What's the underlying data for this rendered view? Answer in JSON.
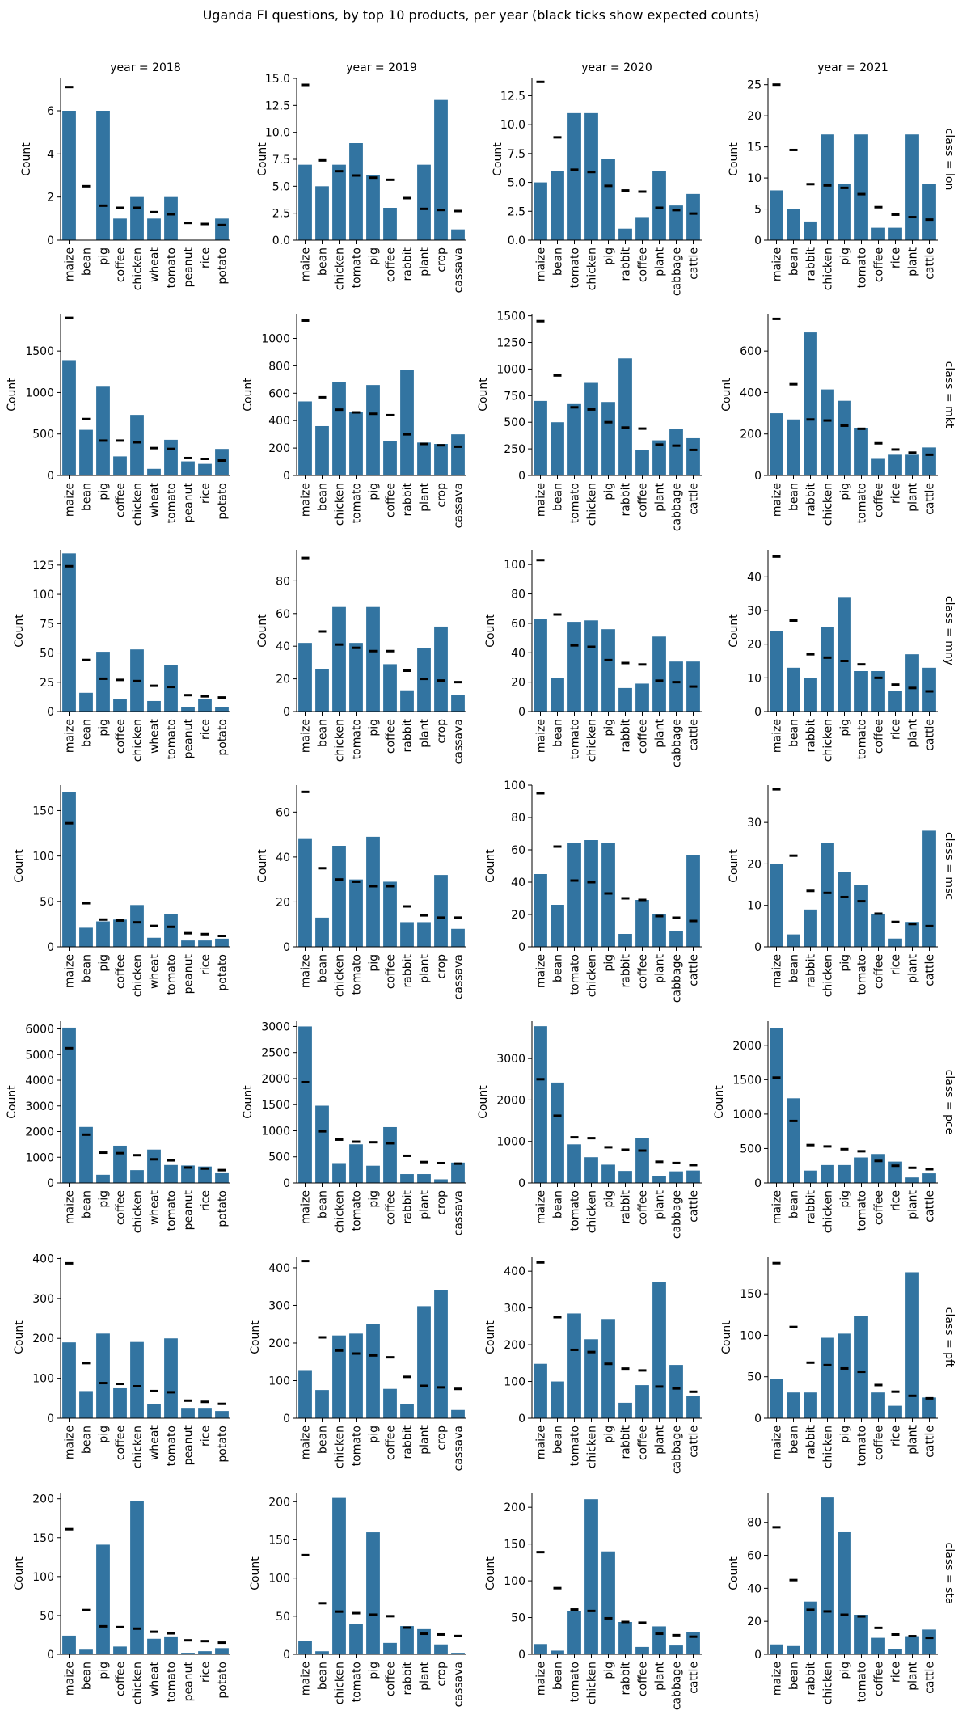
{
  "chart_data": {
    "type": "bar",
    "title": "Uganda FI questions, by top 10 products, per year (black ticks show expected counts)",
    "ylabel": "Count",
    "bar_color": "#3274a1",
    "expected_tick_color": "#000000",
    "columns": [
      "year = 2018",
      "year = 2019",
      "year = 2020",
      "year = 2021"
    ],
    "rows": [
      "class = lon",
      "class = mkt",
      "class = mny",
      "class = msc",
      "class = pce",
      "class = pft",
      "class = sta"
    ],
    "categories_by_year": [
      [
        "maize",
        "bean",
        "pig",
        "coffee",
        "chicken",
        "wheat",
        "tomato",
        "peanut",
        "rice",
        "potato"
      ],
      [
        "maize",
        "bean",
        "chicken",
        "tomato",
        "pig",
        "coffee",
        "rabbit",
        "plant",
        "crop",
        "cassava"
      ],
      [
        "maize",
        "bean",
        "tomato",
        "chicken",
        "pig",
        "rabbit",
        "coffee",
        "plant",
        "cabbage",
        "cattle"
      ],
      [
        "maize",
        "bean",
        "rabbit",
        "chicken",
        "pig",
        "tomato",
        "coffee",
        "rice",
        "plant",
        "cattle"
      ]
    ],
    "panels": [
      [
        {
          "ylim": [
            0,
            7.5
          ],
          "yticks": [
            0,
            2,
            4,
            6
          ],
          "values": [
            6,
            0,
            6,
            1,
            2,
            1,
            2,
            0,
            0,
            1
          ],
          "expected": [
            7.1,
            2.5,
            1.6,
            1.5,
            1.5,
            1.3,
            1.2,
            0.8,
            0.75,
            0.7
          ]
        },
        {
          "ylim": [
            0,
            15
          ],
          "yticks": [
            0.0,
            2.5,
            5.0,
            7.5,
            10.0,
            12.5,
            15.0
          ],
          "values": [
            7,
            5,
            7,
            9,
            6,
            3,
            0,
            7,
            13,
            1
          ],
          "expected": [
            14.4,
            7.4,
            6.4,
            6.0,
            5.8,
            5.6,
            3.9,
            2.9,
            2.8,
            2.7
          ]
        },
        {
          "ylim": [
            0,
            14
          ],
          "yticks": [
            0.0,
            2.5,
            5.0,
            7.5,
            10.0,
            12.5
          ],
          "values": [
            5,
            6,
            11,
            11,
            7,
            1,
            2,
            6,
            3,
            4
          ],
          "expected": [
            13.7,
            8.9,
            6.1,
            5.9,
            4.7,
            4.3,
            4.2,
            2.8,
            2.6,
            2.3
          ]
        },
        {
          "ylim": [
            0,
            26
          ],
          "yticks": [
            0,
            5,
            10,
            15,
            20,
            25
          ],
          "values": [
            8,
            5,
            3,
            17,
            9,
            17,
            2,
            2,
            17,
            9
          ],
          "expected": [
            25,
            14.5,
            9.0,
            8.8,
            8.4,
            7.4,
            5.3,
            4.1,
            3.7,
            3.3
          ]
        }
      ],
      [
        {
          "ylim": [
            0,
            1950
          ],
          "yticks": [
            0,
            500,
            1000,
            1500
          ],
          "values": [
            1390,
            550,
            1070,
            230,
            730,
            80,
            430,
            170,
            140,
            320
          ],
          "expected": [
            1900,
            680,
            420,
            420,
            400,
            330,
            320,
            210,
            200,
            180
          ]
        },
        {
          "ylim": [
            0,
            1180
          ],
          "yticks": [
            0,
            200,
            400,
            600,
            800,
            1000
          ],
          "values": [
            540,
            360,
            680,
            460,
            660,
            250,
            770,
            240,
            230,
            300
          ],
          "expected": [
            1130,
            570,
            480,
            460,
            450,
            440,
            300,
            230,
            220,
            210
          ]
        },
        {
          "ylim": [
            0,
            1520
          ],
          "yticks": [
            0,
            250,
            500,
            750,
            1000,
            1250,
            1500
          ],
          "values": [
            700,
            500,
            670,
            870,
            690,
            1100,
            240,
            330,
            440,
            350
          ],
          "expected": [
            1450,
            940,
            640,
            620,
            500,
            450,
            440,
            290,
            280,
            240
          ]
        },
        {
          "ylim": [
            0,
            780
          ],
          "yticks": [
            0,
            200,
            400,
            600
          ],
          "values": [
            300,
            270,
            690,
            415,
            360,
            230,
            80,
            100,
            100,
            135
          ],
          "expected": [
            755,
            440,
            270,
            265,
            240,
            225,
            155,
            125,
            110,
            100
          ]
        }
      ],
      [
        {
          "ylim": [
            0,
            138
          ],
          "yticks": [
            0,
            25,
            50,
            75,
            100,
            125
          ],
          "values": [
            135,
            16,
            51,
            11,
            53,
            9,
            40,
            4,
            11,
            4
          ],
          "expected": [
            124,
            44,
            28,
            27,
            26,
            22,
            21,
            14,
            13,
            12
          ]
        },
        {
          "ylim": [
            0,
            99
          ],
          "yticks": [
            0,
            20,
            40,
            60,
            80
          ],
          "values": [
            42,
            26,
            64,
            42,
            64,
            29,
            13,
            39,
            52,
            10
          ],
          "expected": [
            94,
            49,
            41,
            39,
            37,
            37,
            25,
            20,
            19,
            18
          ]
        },
        {
          "ylim": [
            0,
            110
          ],
          "yticks": [
            0,
            20,
            40,
            60,
            80,
            100
          ],
          "values": [
            63,
            23,
            61,
            62,
            56,
            16,
            19,
            51,
            34,
            34
          ],
          "expected": [
            103,
            66,
            45,
            44,
            35,
            33,
            32,
            21,
            20,
            17
          ]
        },
        {
          "ylim": [
            0,
            48
          ],
          "yticks": [
            0,
            10,
            20,
            30,
            40
          ],
          "values": [
            24,
            13,
            10,
            25,
            34,
            12,
            12,
            6,
            17,
            13
          ],
          "expected": [
            46,
            27,
            17,
            16,
            15,
            14,
            10,
            8,
            7,
            6
          ]
        }
      ],
      [
        {
          "ylim": [
            0,
            178
          ],
          "yticks": [
            0,
            50,
            100,
            150
          ],
          "values": [
            170,
            21,
            28,
            30,
            46,
            10,
            36,
            7,
            7,
            9
          ],
          "expected": [
            136,
            48,
            30,
            29,
            27,
            23,
            22,
            15,
            14,
            12
          ]
        },
        {
          "ylim": [
            0,
            72
          ],
          "yticks": [
            0,
            20,
            40,
            60
          ],
          "values": [
            48,
            13,
            45,
            30,
            49,
            29,
            11,
            11,
            32,
            8
          ],
          "expected": [
            69,
            35,
            30,
            29,
            27,
            27,
            18,
            14,
            13,
            13
          ]
        },
        {
          "ylim": [
            0,
            100
          ],
          "yticks": [
            0,
            20,
            40,
            60,
            80,
            100
          ],
          "values": [
            45,
            26,
            64,
            66,
            64,
            8,
            29,
            20,
            10,
            57
          ],
          "expected": [
            95,
            62,
            41,
            40,
            33,
            30,
            29,
            19,
            18,
            16
          ]
        },
        {
          "ylim": [
            0,
            39
          ],
          "yticks": [
            0,
            10,
            20,
            30
          ],
          "values": [
            20,
            3,
            9,
            25,
            18,
            15,
            8,
            2,
            6,
            28
          ],
          "expected": [
            38,
            22,
            13.5,
            13,
            12,
            11,
            8,
            6,
            5.5,
            5
          ]
        }
      ],
      [
        {
          "ylim": [
            0,
            6300
          ],
          "yticks": [
            0,
            1000,
            2000,
            3000,
            4000,
            5000,
            6000
          ],
          "values": [
            6050,
            2180,
            320,
            1450,
            500,
            1300,
            700,
            680,
            640,
            380
          ],
          "expected": [
            5250,
            1880,
            1180,
            1160,
            1080,
            920,
            880,
            600,
            560,
            500
          ]
        },
        {
          "ylim": [
            0,
            3100
          ],
          "yticks": [
            0,
            500,
            1000,
            1500,
            2000,
            2500,
            3000
          ],
          "values": [
            3000,
            1480,
            380,
            740,
            330,
            1070,
            170,
            170,
            70,
            390
          ],
          "expected": [
            1930,
            990,
            830,
            790,
            780,
            760,
            520,
            400,
            380,
            370
          ]
        },
        {
          "ylim": [
            0,
            3900
          ],
          "yticks": [
            0,
            1000,
            2000,
            3000
          ],
          "values": [
            3780,
            2420,
            930,
            620,
            440,
            290,
            1080,
            170,
            280,
            300
          ],
          "expected": [
            2500,
            1620,
            1100,
            1080,
            860,
            800,
            780,
            510,
            480,
            430
          ]
        },
        {
          "ylim": [
            0,
            2350
          ],
          "yticks": [
            0,
            500,
            1000,
            1500,
            2000
          ],
          "values": [
            2250,
            1230,
            180,
            260,
            260,
            370,
            420,
            310,
            80,
            140
          ],
          "expected": [
            1530,
            900,
            550,
            530,
            490,
            460,
            320,
            250,
            220,
            200
          ]
        }
      ],
      [
        {
          "ylim": [
            0,
            405
          ],
          "yticks": [
            0,
            100,
            200,
            300,
            400
          ],
          "values": [
            190,
            68,
            212,
            75,
            191,
            35,
            200,
            26,
            26,
            18
          ],
          "expected": [
            388,
            138,
            88,
            86,
            80,
            68,
            65,
            44,
            41,
            36
          ]
        },
        {
          "ylim": [
            0,
            430
          ],
          "yticks": [
            0,
            100,
            200,
            300,
            400
          ],
          "values": [
            128,
            75,
            220,
            225,
            250,
            78,
            37,
            298,
            340,
            22
          ],
          "expected": [
            418,
            215,
            180,
            172,
            167,
            162,
            110,
            86,
            82,
            78
          ]
        },
        {
          "ylim": [
            0,
            440
          ],
          "yticks": [
            0,
            100,
            200,
            300,
            400
          ],
          "values": [
            148,
            100,
            285,
            215,
            270,
            42,
            90,
            370,
            145,
            60
          ],
          "expected": [
            424,
            275,
            186,
            180,
            148,
            135,
            130,
            86,
            81,
            72
          ]
        },
        {
          "ylim": [
            0,
            195
          ],
          "yticks": [
            0,
            50,
            100,
            150
          ],
          "values": [
            47,
            31,
            31,
            97,
            102,
            123,
            31,
            15,
            176,
            25
          ],
          "expected": [
            187,
            110,
            67,
            64,
            60,
            56,
            40,
            32,
            27,
            24
          ]
        }
      ],
      [
        {
          "ylim": [
            0,
            208
          ],
          "yticks": [
            0,
            50,
            100,
            150,
            200
          ],
          "values": [
            24,
            6,
            141,
            10,
            197,
            20,
            23,
            2,
            4,
            8
          ],
          "expected": [
            161,
            57,
            36,
            35,
            33,
            29,
            27,
            18,
            17,
            15
          ]
        },
        {
          "ylim": [
            0,
            212
          ],
          "yticks": [
            0,
            50,
            100,
            150,
            200
          ],
          "values": [
            17,
            4,
            205,
            40,
            160,
            15,
            37,
            33,
            13,
            2
          ],
          "expected": [
            130,
            67,
            56,
            54,
            52,
            50,
            35,
            27,
            26,
            24
          ]
        },
        {
          "ylim": [
            0,
            220
          ],
          "yticks": [
            0,
            50,
            100,
            150,
            200
          ],
          "values": [
            14,
            5,
            59,
            211,
            140,
            44,
            10,
            38,
            12,
            30
          ],
          "expected": [
            139,
            90,
            61,
            59,
            49,
            44,
            43,
            28,
            26,
            24
          ]
        },
        {
          "ylim": [
            0,
            98
          ],
          "yticks": [
            0,
            20,
            40,
            60,
            80
          ],
          "values": [
            6,
            5,
            32,
            95,
            74,
            24,
            10,
            3,
            11,
            15
          ],
          "expected": [
            77,
            45,
            27,
            26,
            24,
            23,
            16,
            12,
            11,
            10
          ]
        }
      ]
    ]
  }
}
